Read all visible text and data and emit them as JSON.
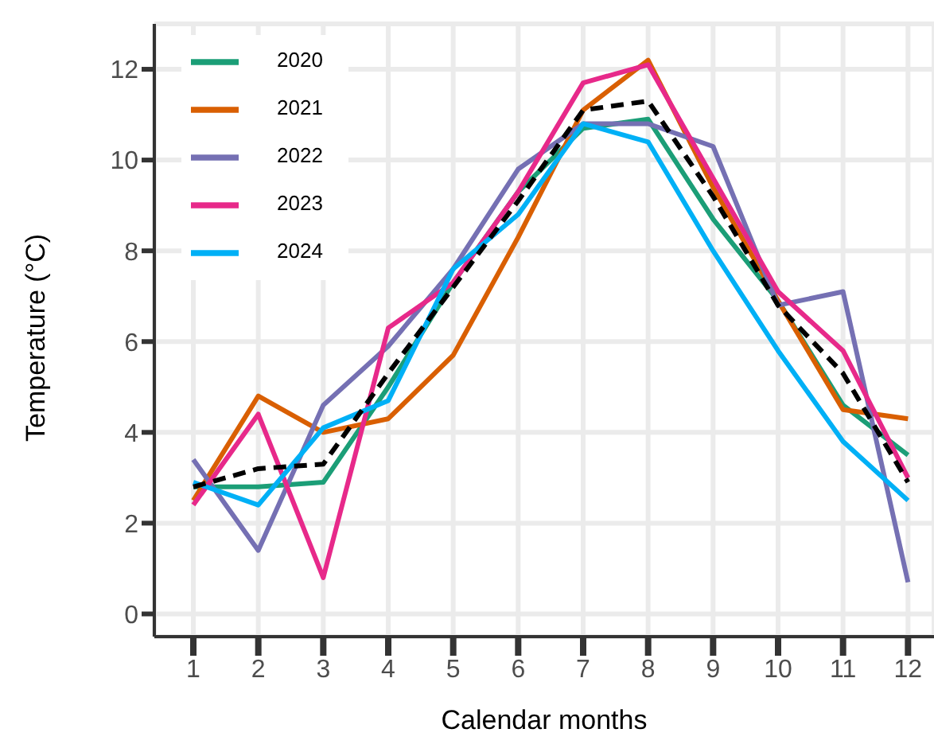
{
  "chart_data": {
    "type": "line",
    "xlabel": "Calendar months",
    "ylabel": "Temperature (°C)",
    "x": [
      1,
      2,
      3,
      4,
      5,
      6,
      7,
      8,
      9,
      10,
      11,
      12
    ],
    "xlim": [
      0.4,
      12.4
    ],
    "xticks": [
      1,
      2,
      3,
      4,
      5,
      6,
      7,
      8,
      9,
      10,
      11,
      12
    ],
    "ylim": [
      -0.5,
      13
    ],
    "yticks": [
      0,
      2,
      4,
      6,
      8,
      10,
      12
    ],
    "grid": true,
    "legend": "top left",
    "marker": "none",
    "line_style": "solid",
    "series": [
      {
        "name": "2020",
        "color": "#1b9e77",
        "values": [
          2.8,
          2.8,
          2.9,
          5.0,
          7.3,
          9.3,
          10.7,
          10.9,
          8.7,
          6.9,
          4.6,
          3.5
        ]
      },
      {
        "name": "2021",
        "color": "#d95f02",
        "values": [
          2.5,
          4.8,
          4.0,
          4.3,
          5.7,
          8.3,
          11.1,
          12.2,
          9.4,
          6.9,
          4.5,
          4.3
        ]
      },
      {
        "name": "2022",
        "color": "#7570b3",
        "values": [
          3.4,
          1.4,
          4.6,
          5.9,
          7.6,
          9.8,
          10.8,
          10.8,
          10.3,
          6.8,
          7.1,
          0.7
        ]
      },
      {
        "name": "2023",
        "color": "#e7298a",
        "values": [
          2.4,
          4.4,
          0.8,
          6.3,
          7.3,
          9.3,
          11.7,
          12.1,
          9.6,
          7.1,
          5.8,
          3.0
        ]
      },
      {
        "name": "2024",
        "color": "#00b0f6",
        "values": [
          2.9,
          2.4,
          4.1,
          4.7,
          7.6,
          8.8,
          10.8,
          10.4,
          8.0,
          5.8,
          3.8,
          2.5
        ]
      },
      {
        "color": "#000000",
        "line_style": "dashed",
        "values": [
          2.8,
          3.2,
          3.3,
          5.3,
          7.2,
          9.1,
          11.1,
          11.3,
          9.2,
          6.8,
          5.3,
          2.9
        ]
      }
    ]
  }
}
